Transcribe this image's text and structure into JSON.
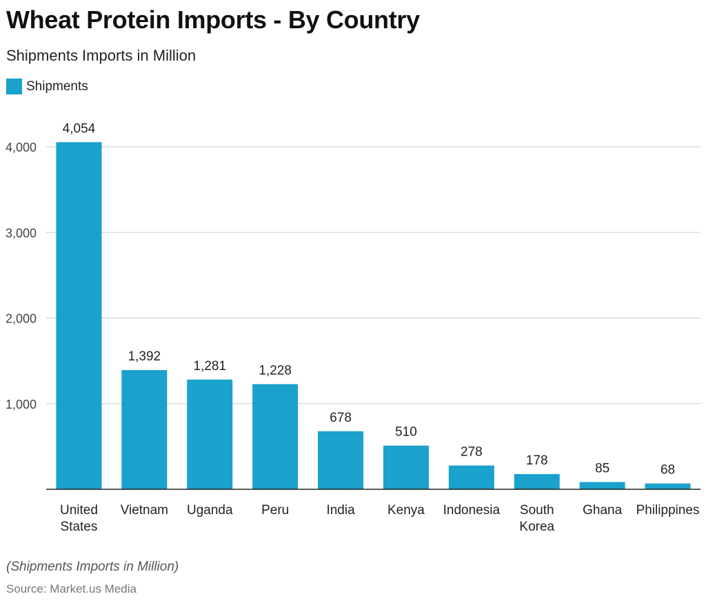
{
  "colors": {
    "bar": "#1aa1cc",
    "grid": "#cccccc",
    "axis": "#222222"
  },
  "footer": {
    "note": "(Shipments Imports in Million)",
    "source": "Source: Market.us Media"
  },
  "chart_data": {
    "type": "bar",
    "title": "Wheat Protein Imports - By Country",
    "subtitle": "Shipments Imports in Million",
    "xlabel": "",
    "ylabel": "",
    "legend": "top-left",
    "grid": true,
    "ylim": [
      0,
      4000
    ],
    "yticks": [
      1000,
      2000,
      3000,
      4000
    ],
    "ytick_labels": [
      "1,000",
      "2,000",
      "3,000",
      "4,000"
    ],
    "categories": [
      "United States",
      "Vietnam",
      "Uganda",
      "Peru",
      "India",
      "Kenya",
      "Indonesia",
      "South Korea",
      "Ghana",
      "Philippines"
    ],
    "category_lines": [
      [
        "United",
        "States"
      ],
      [
        "Vietnam"
      ],
      [
        "Uganda"
      ],
      [
        "Peru"
      ],
      [
        "India"
      ],
      [
        "Kenya"
      ],
      [
        "Indonesia"
      ],
      [
        "South",
        "Korea"
      ],
      [
        "Ghana"
      ],
      [
        "Philippines"
      ]
    ],
    "series": [
      {
        "name": "Shipments",
        "values": [
          4054,
          1392,
          1281,
          1228,
          678,
          510,
          278,
          178,
          85,
          68
        ],
        "value_labels": [
          "4,054",
          "1,392",
          "1,281",
          "1,228",
          "678",
          "510",
          "278",
          "178",
          "85",
          "68"
        ]
      }
    ]
  }
}
